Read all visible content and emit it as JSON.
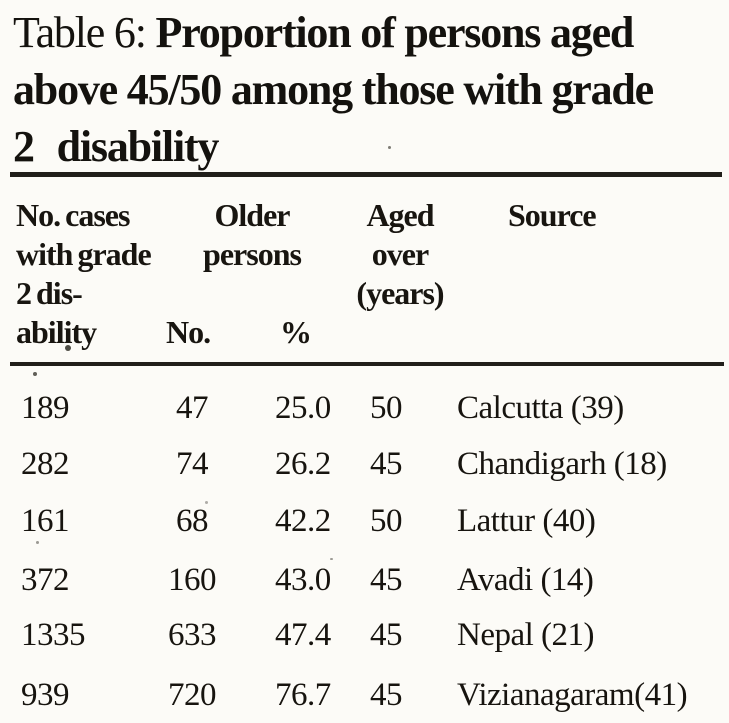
{
  "title": {
    "label": "Table 6:",
    "line1_rest": "Proportion of persons aged",
    "line2": "above 45/50 among those with grade",
    "line3": "2 disability"
  },
  "table": {
    "header": {
      "cases_line1": "No. cases",
      "cases_line2": "with grade",
      "cases_line3": "2 dis-",
      "cases_line4": "ability",
      "older_line1": "Older",
      "older_line2": "persons",
      "no_label": "No.",
      "pct_label": "%",
      "aged_line1": "Aged",
      "aged_line2": "over",
      "aged_line3": "(years)",
      "source_label": "Source"
    },
    "rows": [
      {
        "cases": "189",
        "older_no": "47",
        "older_pct": "25.0",
        "aged_over": "50",
        "source": "Calcutta (39)"
      },
      {
        "cases": "282",
        "older_no": "74",
        "older_pct": "26.2",
        "aged_over": "45",
        "source": "Chandigarh (18)"
      },
      {
        "cases": "161",
        "older_no": "68",
        "older_pct": "42.2",
        "aged_over": "50",
        "source": "Lattur (40)"
      },
      {
        "cases": "372",
        "older_no": "160",
        "older_pct": "43.0",
        "aged_over": "45",
        "source": "Avadi (14)"
      },
      {
        "cases": "1335",
        "older_no": "633",
        "older_pct": "47.4",
        "aged_over": "45",
        "source": "Nepal (21)"
      },
      {
        "cases": "939",
        "older_no": "720",
        "older_pct": "76.7",
        "aged_over": "45",
        "source": "Vizianagaram(41)"
      }
    ]
  },
  "colors": {
    "background": "#fcfbf7",
    "ink": "#17140f",
    "rule": "#211f1a"
  }
}
